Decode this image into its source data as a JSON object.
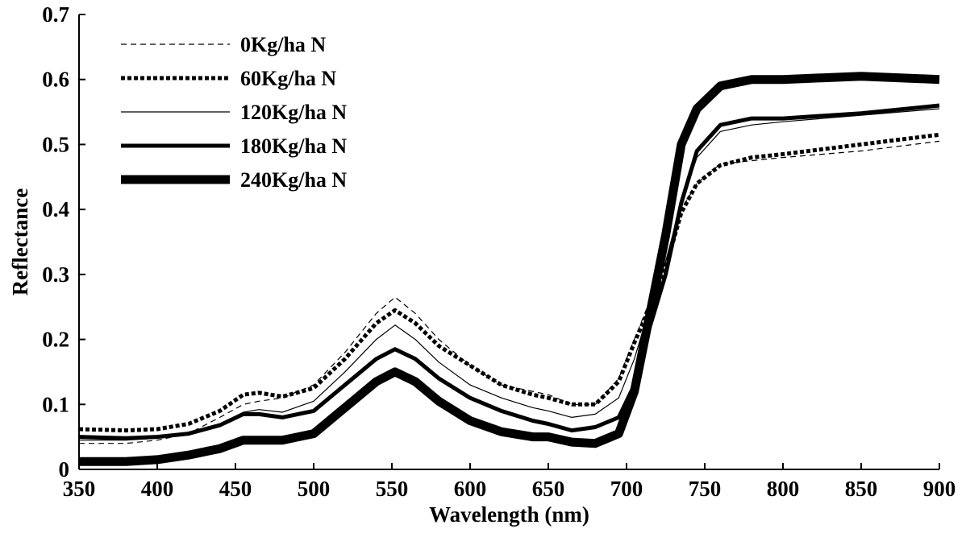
{
  "chart_data": {
    "type": "line",
    "xlabel": "Wavelength (nm)",
    "ylabel": "Reflectance",
    "xlim": [
      350,
      900
    ],
    "ylim": [
      0,
      0.7
    ],
    "x_ticks": [
      "350",
      "400",
      "450",
      "500",
      "550",
      "600",
      "650",
      "700",
      "750",
      "800",
      "850",
      "900"
    ],
    "y_ticks": [
      "0",
      "0.1",
      "0.2",
      "0.3",
      "0.4",
      "0.5",
      "0.6",
      "0.7"
    ],
    "grid": false,
    "legend_position": "top-left",
    "x": [
      350,
      380,
      400,
      420,
      440,
      455,
      465,
      480,
      500,
      520,
      540,
      552,
      565,
      580,
      600,
      620,
      640,
      650,
      665,
      680,
      695,
      705,
      715,
      725,
      735,
      745,
      760,
      780,
      800,
      850,
      900
    ],
    "series": [
      {
        "name": "0Kg/ha N",
        "style": "thin-dashed",
        "values": [
          0.04,
          0.04,
          0.045,
          0.055,
          0.08,
          0.1,
          0.105,
          0.11,
          0.13,
          0.18,
          0.24,
          0.265,
          0.24,
          0.2,
          0.16,
          0.13,
          0.12,
          0.115,
          0.1,
          0.1,
          0.14,
          0.2,
          0.26,
          0.32,
          0.4,
          0.44,
          0.47,
          0.475,
          0.48,
          0.49,
          0.505
        ]
      },
      {
        "name": "60Kg/ha N",
        "style": "thick-dotted",
        "values": [
          0.062,
          0.06,
          0.062,
          0.07,
          0.09,
          0.115,
          0.118,
          0.112,
          0.125,
          0.17,
          0.225,
          0.245,
          0.225,
          0.19,
          0.16,
          0.13,
          0.115,
          0.11,
          0.1,
          0.1,
          0.135,
          0.195,
          0.25,
          0.31,
          0.395,
          0.44,
          0.468,
          0.48,
          0.485,
          0.5,
          0.515
        ]
      },
      {
        "name": "120Kg/ha N",
        "style": "thin-solid",
        "values": [
          0.045,
          0.045,
          0.048,
          0.055,
          0.07,
          0.088,
          0.092,
          0.088,
          0.105,
          0.15,
          0.2,
          0.222,
          0.2,
          0.165,
          0.13,
          0.11,
          0.095,
          0.09,
          0.08,
          0.085,
          0.11,
          0.17,
          0.25,
          0.32,
          0.41,
          0.48,
          0.52,
          0.53,
          0.535,
          0.545,
          0.555
        ]
      },
      {
        "name": "180Kg/ha N",
        "style": "medium-solid",
        "values": [
          0.05,
          0.048,
          0.05,
          0.055,
          0.068,
          0.085,
          0.085,
          0.08,
          0.09,
          0.13,
          0.17,
          0.185,
          0.17,
          0.14,
          0.11,
          0.09,
          0.075,
          0.07,
          0.06,
          0.065,
          0.08,
          0.13,
          0.22,
          0.3,
          0.41,
          0.49,
          0.53,
          0.54,
          0.54,
          0.548,
          0.56
        ]
      },
      {
        "name": "240Kg/ha N",
        "style": "heavy-solid",
        "values": [
          0.012,
          0.012,
          0.015,
          0.022,
          0.032,
          0.045,
          0.045,
          0.045,
          0.055,
          0.095,
          0.135,
          0.15,
          0.135,
          0.105,
          0.075,
          0.058,
          0.05,
          0.05,
          0.042,
          0.04,
          0.055,
          0.12,
          0.24,
          0.36,
          0.5,
          0.555,
          0.59,
          0.6,
          0.6,
          0.605,
          0.6
        ]
      }
    ]
  }
}
